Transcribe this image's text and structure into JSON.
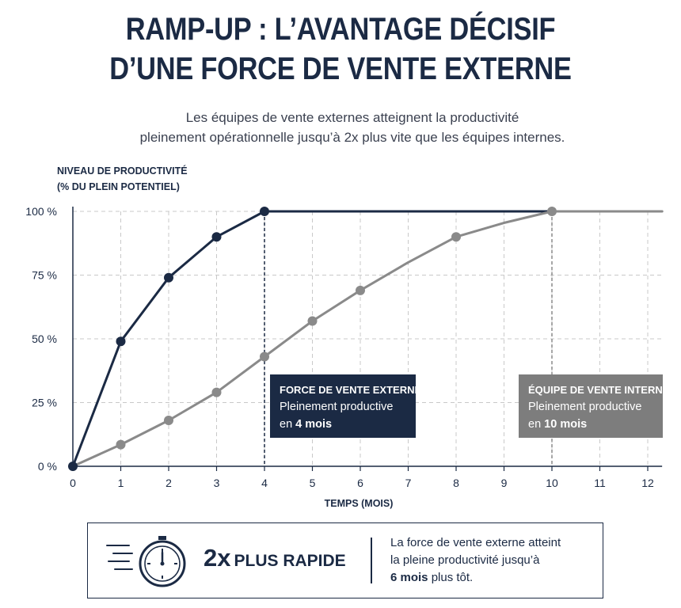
{
  "header": {
    "title_line1": "RAMP-UP : L’AVANTAGE DÉCISIF",
    "title_line2": "D’UNE FORCE DE VENTE EXTERNE",
    "subtitle_line1": "Les équipes de vente externes atteignent la productivité",
    "subtitle_line2": "pleinement opérationnelle jusqu’à 2x plus vite que les équipes internes."
  },
  "chart_data": {
    "type": "line",
    "ylabel_line1": "NIVEAU DE PRODUCTIVITÉ",
    "ylabel_line2": "(% DU PLEIN POTENTIEL)",
    "xlabel": "TEMPS (MOIS)",
    "xlim": [
      0,
      12.3
    ],
    "ylim": [
      0,
      100
    ],
    "x_ticks": [
      0,
      1,
      2,
      3,
      4,
      5,
      6,
      7,
      8,
      9,
      10,
      11,
      12
    ],
    "x_tick_labels": [
      "0",
      "1",
      "2",
      "3",
      "4",
      "5",
      "6",
      "7",
      "8",
      "9",
      "10",
      "11",
      "12"
    ],
    "y_ticks": [
      0,
      25,
      50,
      75,
      100
    ],
    "y_tick_labels": [
      "0 %",
      "25 %",
      "50 %",
      "75 %",
      "100 %"
    ],
    "grid": true,
    "series": [
      {
        "id": "external",
        "color": "#1b2a44",
        "line_points": [
          [
            0,
            0
          ],
          [
            1,
            49
          ],
          [
            2,
            74
          ],
          [
            3,
            90
          ],
          [
            4,
            100
          ],
          [
            12,
            100
          ]
        ],
        "markers": [
          [
            0,
            0
          ],
          [
            1,
            49
          ],
          [
            2,
            74
          ],
          [
            3,
            90
          ],
          [
            4,
            100
          ]
        ]
      },
      {
        "id": "internal",
        "color": "#8a8a8a",
        "line_points": [
          [
            0,
            0
          ],
          [
            1,
            8.5
          ],
          [
            2,
            18
          ],
          [
            3,
            29
          ],
          [
            4,
            43
          ],
          [
            5,
            57
          ],
          [
            6,
            69
          ],
          [
            7,
            80
          ],
          [
            8,
            90
          ],
          [
            9,
            95.5
          ],
          [
            10,
            100
          ],
          [
            12.3,
            100
          ]
        ],
        "markers": [
          [
            1,
            8.5
          ],
          [
            2,
            18
          ],
          [
            3,
            29
          ],
          [
            4,
            43
          ],
          [
            5,
            57
          ],
          [
            6,
            69
          ],
          [
            8,
            90
          ],
          [
            10,
            100
          ]
        ]
      }
    ],
    "reference_lines": [
      {
        "x": 4,
        "color": "#1b2a44"
      },
      {
        "x": 10,
        "color": "#8a8a8a"
      }
    ],
    "annotations": {
      "external": {
        "title": "FORCE DE VENTE EXTERNE",
        "text_line1": "Pleinement productive",
        "text_prefix": "en ",
        "text_bold": "4 mois",
        "color": "#1b2a44"
      },
      "internal": {
        "title": "ÉQUIPE DE VENTE INTERNE",
        "text_line1": "Pleinement productive",
        "text_prefix": "en ",
        "text_bold": "10 mois",
        "color": "#7d7d7d"
      }
    }
  },
  "summary": {
    "icon": "stopwatch-icon",
    "big": "2x",
    "small": "PLUS RAPIDE",
    "desc_line1": "La force de vente externe atteint",
    "desc_line2": "la pleine productivité jusqu’à",
    "desc_bold": "6 mois",
    "desc_rest": " plus tôt."
  }
}
